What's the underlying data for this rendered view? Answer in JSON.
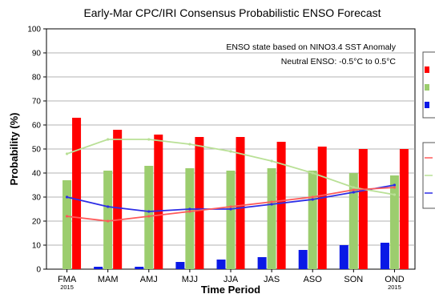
{
  "chart_data": {
    "type": "bar",
    "title": "Early-Mar CPC/IRI Consensus Probabilistic ENSO Forecast",
    "annotation_line1": "ENSO state based on NINO3.4 SST Anomaly",
    "annotation_line2": "Neutral ENSO: -0.5°C to 0.5°C",
    "xlabel": "Time Period",
    "ylabel": "Probability (%)",
    "ylim": [
      0,
      100
    ],
    "yticks": [
      0,
      10,
      20,
      30,
      40,
      50,
      60,
      70,
      80,
      90,
      100
    ],
    "grid": "horizontal",
    "categories": [
      "FMA",
      "MAM",
      "AMJ",
      "MJJ",
      "JJA",
      "JAS",
      "ASO",
      "SON",
      "OND"
    ],
    "category_sublabels": [
      "2015",
      "",
      "",
      "",
      "",
      "",
      "",
      "",
      "2015"
    ],
    "series": [
      {
        "key": "la_nina",
        "color": "#0a19e6",
        "values": [
          0,
          1,
          1,
          3,
          4,
          5,
          8,
          10,
          11
        ]
      },
      {
        "key": "neutral",
        "color": "#9ccd6e",
        "values": [
          37,
          41,
          43,
          42,
          41,
          42,
          41,
          40,
          39
        ]
      },
      {
        "key": "el_nino",
        "color": "#ff0000",
        "values": [
          63,
          58,
          56,
          55,
          55,
          53,
          51,
          50,
          50
        ]
      }
    ],
    "lines": [
      {
        "key": "la_nina_clim",
        "color": "#2d2de6",
        "values": [
          30,
          26,
          24,
          25,
          25,
          27,
          29,
          32,
          35
        ]
      },
      {
        "key": "neutral_clim",
        "color": "#b9e096",
        "values": [
          48,
          54,
          54,
          52,
          49,
          45,
          40,
          34,
          31
        ]
      },
      {
        "key": "el_nino_clim",
        "color": "#ff5a5a",
        "values": [
          22,
          20,
          22,
          24,
          26,
          28,
          30,
          33,
          34
        ]
      }
    ]
  }
}
